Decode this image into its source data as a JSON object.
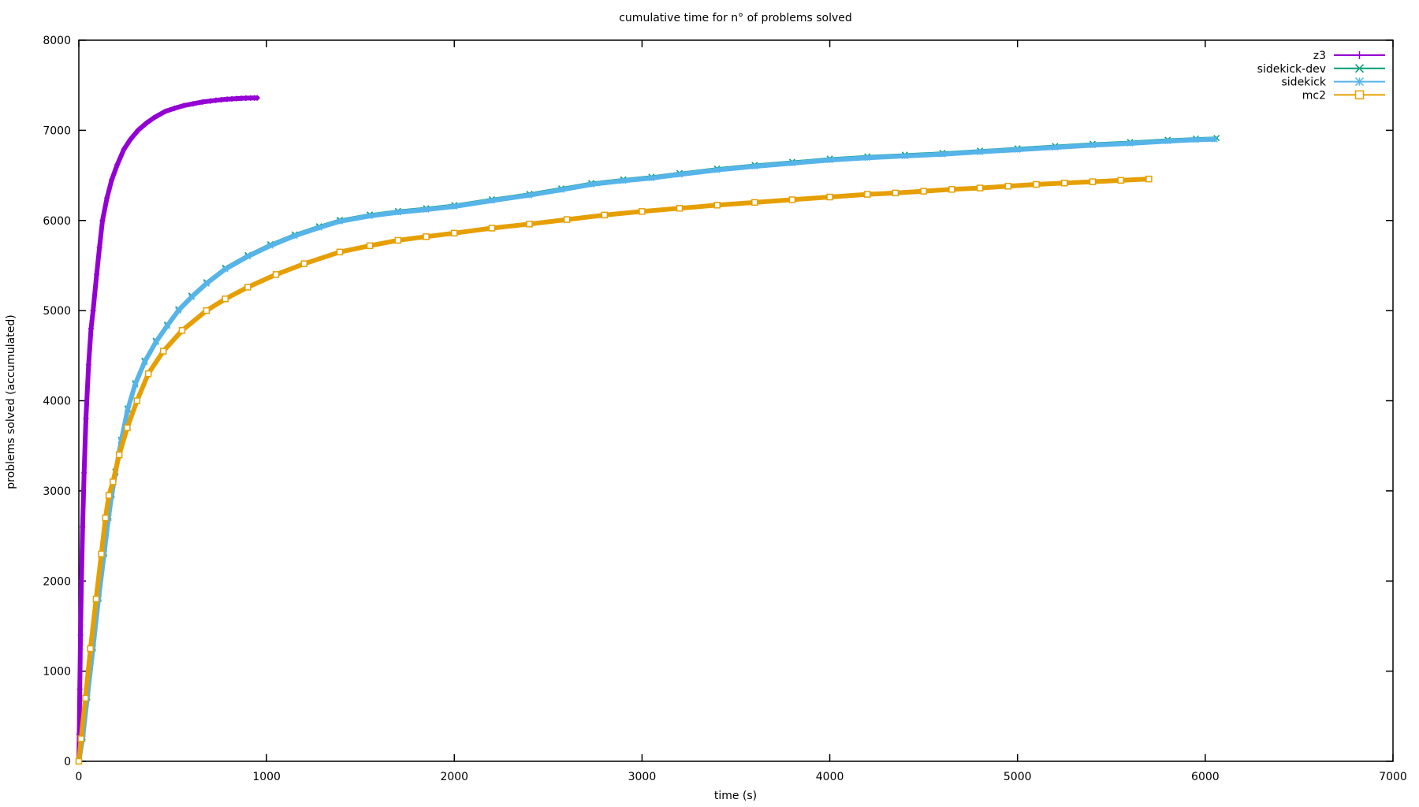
{
  "chart_data": {
    "type": "line",
    "title": "cumulative time for n° of problems solved",
    "xlabel": "time (s)",
    "ylabel": "problems solved (accumulated)",
    "xlim": [
      0,
      7000
    ],
    "ylim": [
      0,
      8000
    ],
    "x_ticks": [
      0,
      1000,
      2000,
      3000,
      4000,
      5000,
      6000,
      7000
    ],
    "y_ticks": [
      0,
      1000,
      2000,
      3000,
      4000,
      5000,
      6000,
      7000,
      8000
    ],
    "grid": false,
    "legend_position": "top-right-inside",
    "legend_order": [
      "z3",
      "sidekick-dev",
      "sidekick",
      "mc2"
    ],
    "series": [
      {
        "name": "z3",
        "color": "#9400d3",
        "marker": "plus",
        "points": [
          [
            0,
            0
          ],
          [
            2,
            300
          ],
          [
            5,
            800
          ],
          [
            9,
            1400
          ],
          [
            14,
            2000
          ],
          [
            20,
            2600
          ],
          [
            28,
            3200
          ],
          [
            38,
            3800
          ],
          [
            52,
            4400
          ],
          [
            65,
            4800
          ],
          [
            76,
            5000
          ],
          [
            95,
            5400
          ],
          [
            110,
            5700
          ],
          [
            126,
            6000
          ],
          [
            150,
            6250
          ],
          [
            175,
            6450
          ],
          [
            205,
            6620
          ],
          [
            240,
            6790
          ],
          [
            275,
            6900
          ],
          [
            315,
            7000
          ],
          [
            360,
            7080
          ],
          [
            400,
            7140
          ],
          [
            460,
            7210
          ],
          [
            510,
            7245
          ],
          [
            560,
            7275
          ],
          [
            610,
            7295
          ],
          [
            660,
            7315
          ],
          [
            700,
            7325
          ],
          [
            730,
            7333
          ],
          [
            760,
            7340
          ],
          [
            790,
            7345
          ],
          [
            815,
            7349
          ],
          [
            840,
            7352
          ],
          [
            865,
            7355
          ],
          [
            890,
            7357
          ],
          [
            915,
            7358
          ],
          [
            935,
            7359
          ],
          [
            950,
            7360
          ]
        ]
      },
      {
        "name": "sidekick-dev",
        "color": "#009e73",
        "marker": "cross",
        "points": [
          [
            0,
            0
          ],
          [
            20,
            265
          ],
          [
            45,
            715
          ],
          [
            75,
            1265
          ],
          [
            105,
            1815
          ],
          [
            135,
            2315
          ],
          [
            158,
            2715
          ],
          [
            175,
            2965
          ],
          [
            195,
            3215
          ],
          [
            225,
            3565
          ],
          [
            260,
            3915
          ],
          [
            300,
            4195
          ],
          [
            350,
            4445
          ],
          [
            410,
            4665
          ],
          [
            470,
            4845
          ],
          [
            530,
            5015
          ],
          [
            600,
            5165
          ],
          [
            680,
            5315
          ],
          [
            780,
            5475
          ],
          [
            900,
            5615
          ],
          [
            1020,
            5735
          ],
          [
            1150,
            5845
          ],
          [
            1280,
            5935
          ],
          [
            1390,
            6005
          ],
          [
            1550,
            6065
          ],
          [
            1700,
            6105
          ],
          [
            1850,
            6135
          ],
          [
            2000,
            6170
          ],
          [
            2200,
            6235
          ],
          [
            2400,
            6295
          ],
          [
            2570,
            6355
          ],
          [
            2730,
            6415
          ],
          [
            2900,
            6455
          ],
          [
            3050,
            6485
          ],
          [
            3200,
            6525
          ],
          [
            3400,
            6575
          ],
          [
            3600,
            6615
          ],
          [
            3800,
            6650
          ],
          [
            4000,
            6685
          ],
          [
            4200,
            6710
          ],
          [
            4400,
            6730
          ],
          [
            4600,
            6750
          ],
          [
            4800,
            6775
          ],
          [
            5000,
            6800
          ],
          [
            5200,
            6825
          ],
          [
            5400,
            6850
          ],
          [
            5600,
            6870
          ],
          [
            5800,
            6895
          ],
          [
            5950,
            6908
          ],
          [
            6060,
            6915
          ]
        ]
      },
      {
        "name": "sidekick",
        "color": "#56b4e9",
        "marker": "asterisk",
        "points": [
          [
            0,
            0
          ],
          [
            20,
            250
          ],
          [
            45,
            700
          ],
          [
            75,
            1250
          ],
          [
            105,
            1800
          ],
          [
            135,
            2300
          ],
          [
            158,
            2700
          ],
          [
            175,
            2950
          ],
          [
            195,
            3200
          ],
          [
            225,
            3550
          ],
          [
            260,
            3900
          ],
          [
            300,
            4180
          ],
          [
            350,
            4430
          ],
          [
            410,
            4650
          ],
          [
            470,
            4830
          ],
          [
            530,
            5000
          ],
          [
            600,
            5150
          ],
          [
            680,
            5300
          ],
          [
            780,
            5460
          ],
          [
            900,
            5600
          ],
          [
            1020,
            5720
          ],
          [
            1150,
            5830
          ],
          [
            1280,
            5920
          ],
          [
            1390,
            5990
          ],
          [
            1550,
            6050
          ],
          [
            1700,
            6090
          ],
          [
            1850,
            6120
          ],
          [
            2000,
            6155
          ],
          [
            2200,
            6220
          ],
          [
            2400,
            6280
          ],
          [
            2570,
            6340
          ],
          [
            2730,
            6400
          ],
          [
            2900,
            6440
          ],
          [
            3050,
            6470
          ],
          [
            3200,
            6510
          ],
          [
            3400,
            6560
          ],
          [
            3600,
            6600
          ],
          [
            3800,
            6635
          ],
          [
            4000,
            6670
          ],
          [
            4200,
            6695
          ],
          [
            4400,
            6715
          ],
          [
            4600,
            6735
          ],
          [
            4800,
            6760
          ],
          [
            5000,
            6785
          ],
          [
            5200,
            6810
          ],
          [
            5400,
            6835
          ],
          [
            5600,
            6855
          ],
          [
            5800,
            6880
          ],
          [
            5950,
            6895
          ],
          [
            6050,
            6900
          ]
        ]
      },
      {
        "name": "mc2",
        "color": "#e69f00",
        "marker": "square",
        "points": [
          [
            0,
            0
          ],
          [
            12,
            250
          ],
          [
            35,
            700
          ],
          [
            62,
            1250
          ],
          [
            92,
            1800
          ],
          [
            120,
            2300
          ],
          [
            142,
            2700
          ],
          [
            160,
            2950
          ],
          [
            182,
            3100
          ],
          [
            215,
            3400
          ],
          [
            258,
            3700
          ],
          [
            310,
            4000
          ],
          [
            370,
            4300
          ],
          [
            450,
            4550
          ],
          [
            550,
            4780
          ],
          [
            680,
            5000
          ],
          [
            780,
            5130
          ],
          [
            900,
            5260
          ],
          [
            1050,
            5400
          ],
          [
            1200,
            5520
          ],
          [
            1390,
            5650
          ],
          [
            1550,
            5720
          ],
          [
            1700,
            5780
          ],
          [
            1850,
            5820
          ],
          [
            2000,
            5860
          ],
          [
            2200,
            5915
          ],
          [
            2400,
            5960
          ],
          [
            2600,
            6010
          ],
          [
            2800,
            6060
          ],
          [
            3000,
            6100
          ],
          [
            3200,
            6135
          ],
          [
            3400,
            6170
          ],
          [
            3600,
            6200
          ],
          [
            3800,
            6230
          ],
          [
            4000,
            6260
          ],
          [
            4200,
            6290
          ],
          [
            4350,
            6305
          ],
          [
            4500,
            6325
          ],
          [
            4650,
            6345
          ],
          [
            4800,
            6360
          ],
          [
            4950,
            6380
          ],
          [
            5100,
            6400
          ],
          [
            5250,
            6415
          ],
          [
            5400,
            6430
          ],
          [
            5550,
            6445
          ],
          [
            5700,
            6460
          ]
        ]
      }
    ],
    "axis_color": "#000000",
    "background_color": "#ffffff"
  }
}
